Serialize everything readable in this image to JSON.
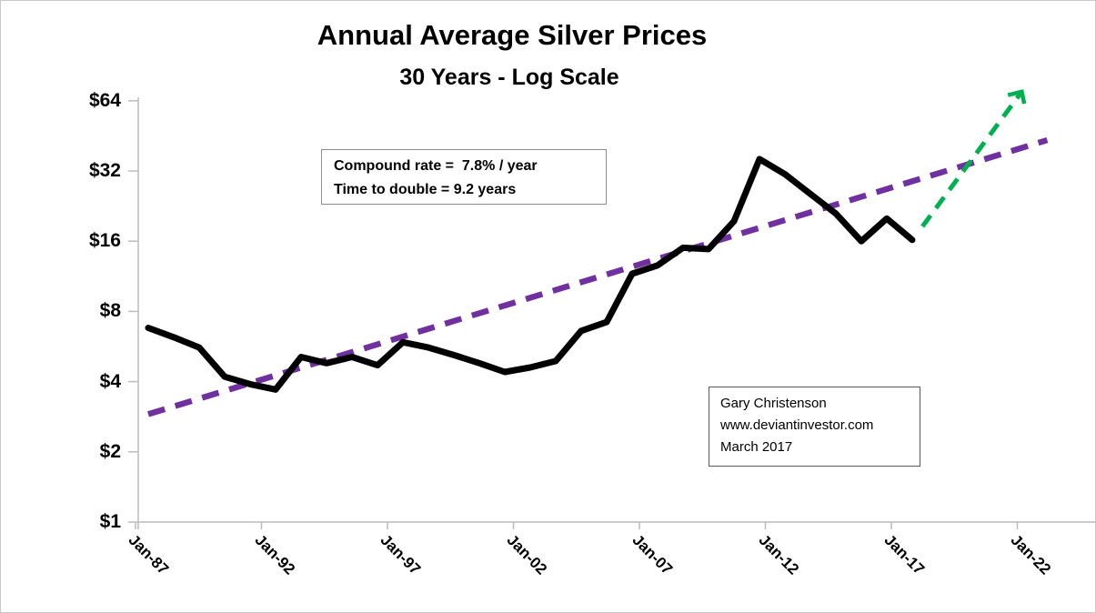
{
  "title": "Annual Average Silver Prices",
  "subtitle": "30 Years - Log Scale",
  "annotations": {
    "rate_box": {
      "line1": "Compound rate =  7.8% / year",
      "line2": "Time to double = 9.2 years"
    },
    "credit_box": {
      "line1": "Gary Christenson",
      "line2": "www.deviantinvestor.com",
      "line3": "March 2017"
    }
  },
  "colors": {
    "price_line": "#000000",
    "trend_line": "#7030a0",
    "projection_arrow": "#00b050",
    "axis": "#bcbcbc",
    "text": "#000000",
    "annotation_border_rate": "#8c8c8c",
    "annotation_border_credit": "#595959"
  },
  "chart_data": {
    "type": "line",
    "title": "Annual Average Silver Prices",
    "subtitle": "30 Years - Log Scale",
    "y_axis": {
      "scale": "log2",
      "ylim": [
        1,
        64
      ],
      "tick_values": [
        1,
        2,
        4,
        8,
        16,
        32,
        64
      ],
      "tick_labels": [
        "$1",
        "$2",
        "$4",
        "$8",
        "$16",
        "$32",
        "$64"
      ],
      "grid": false
    },
    "x_axis": {
      "tick_years": [
        1987,
        1992,
        1997,
        2002,
        2007,
        2012,
        2017,
        2022
      ],
      "tick_labels": [
        "Jan-87",
        "Jan-92",
        "Jan-97",
        "Jan-02",
        "Jan-07",
        "Jan-12",
        "Jan-17",
        "Jan-22"
      ],
      "label_rotation_deg": 45
    },
    "series": [
      {
        "name": "annual-average-silver-price",
        "style": "solid",
        "years": [
          1987,
          1988,
          1989,
          1990,
          1991,
          1992,
          1993,
          1994,
          1995,
          1996,
          1997,
          1998,
          1999,
          2000,
          2001,
          2002,
          2003,
          2004,
          2005,
          2006,
          2007,
          2008,
          2009,
          2010,
          2011,
          2012,
          2013,
          2014,
          2015,
          2016,
          2017
        ],
        "values": [
          6.8,
          6.2,
          5.6,
          4.2,
          3.9,
          3.7,
          5.1,
          4.8,
          5.1,
          4.7,
          5.9,
          5.6,
          5.2,
          4.8,
          4.4,
          4.6,
          4.9,
          6.6,
          7.2,
          11.6,
          12.6,
          15.0,
          14.8,
          19.5,
          36.0,
          31.0,
          25.5,
          21.0,
          16.0,
          20.0,
          16.2
        ]
      }
    ],
    "trend_line": {
      "name": "compound-growth-trend",
      "style": "dashed",
      "from": {
        "year": 1987.0,
        "value": 2.9
      },
      "to": {
        "year": 2022.3,
        "value": 43.4
      }
    },
    "projection_arrow": {
      "name": "bullish-projection",
      "style": "dashed-arrow",
      "from": {
        "year": 2017.4,
        "value": 18.5
      },
      "to": {
        "year": 2021.3,
        "value": 70.0
      }
    }
  }
}
